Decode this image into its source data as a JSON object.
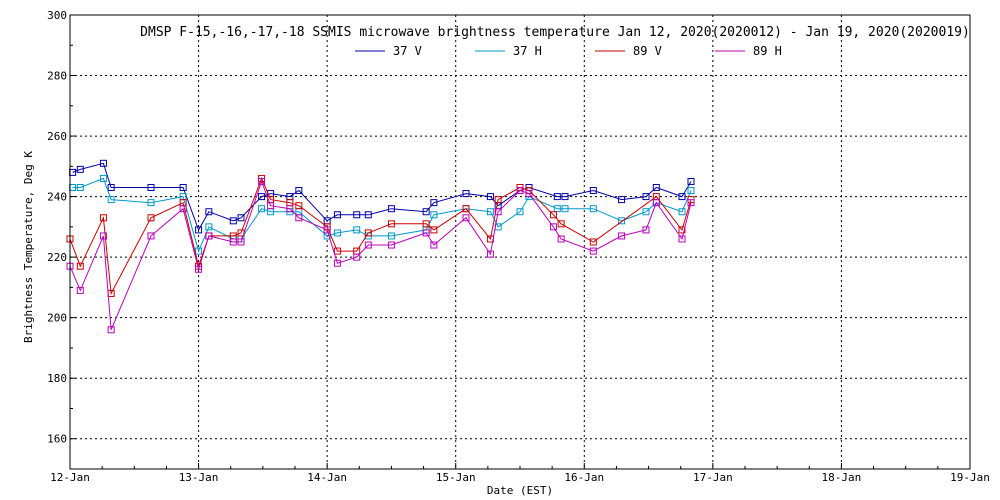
{
  "chart_data": {
    "type": "line",
    "title": "DMSP F-15,-16,-17,-18 SSMIS microwave brightness temperature Jan 12, 2020(2020012) - Jan 19, 2020(2020019)",
    "xlabel": "Date (EST)",
    "ylabel": "Brightness Temperature, Deg K",
    "xlim": [
      0,
      7
    ],
    "ylim": [
      150,
      300
    ],
    "x_ticks": [
      {
        "value": 0,
        "label": "12-Jan"
      },
      {
        "value": 1,
        "label": "13-Jan"
      },
      {
        "value": 2,
        "label": "14-Jan"
      },
      {
        "value": 3,
        "label": "15-Jan"
      },
      {
        "value": 4,
        "label": "16-Jan"
      },
      {
        "value": 5,
        "label": "17-Jan"
      },
      {
        "value": 6,
        "label": "18-Jan"
      },
      {
        "value": 7,
        "label": "19-Jan"
      }
    ],
    "y_ticks": [
      160,
      180,
      200,
      220,
      240,
      260,
      280,
      300
    ],
    "grid": true,
    "legend_position": "top-center",
    "series": [
      {
        "name": "37 V",
        "color": "#0000aa",
        "points": [
          [
            0.02,
            248
          ],
          [
            0.08,
            249
          ],
          [
            0.26,
            251
          ],
          [
            0.32,
            243
          ],
          [
            0.63,
            243
          ],
          [
            0.88,
            243
          ],
          [
            1.0,
            229
          ],
          [
            1.08,
            235
          ],
          [
            1.27,
            232
          ],
          [
            1.33,
            233
          ],
          [
            1.49,
            240
          ],
          [
            1.56,
            241
          ],
          [
            1.71,
            240
          ],
          [
            1.78,
            242
          ],
          [
            2.0,
            232
          ],
          [
            2.08,
            234
          ],
          [
            2.23,
            234
          ],
          [
            2.32,
            234
          ],
          [
            2.5,
            236
          ],
          [
            2.77,
            235
          ],
          [
            2.83,
            238
          ],
          [
            3.08,
            241
          ],
          [
            3.27,
            240
          ],
          [
            3.33,
            237
          ],
          [
            3.5,
            242
          ],
          [
            3.57,
            243
          ],
          [
            3.79,
            240
          ],
          [
            3.85,
            240
          ],
          [
            4.07,
            242
          ],
          [
            4.29,
            239
          ],
          [
            4.48,
            240
          ],
          [
            4.56,
            243
          ],
          [
            4.76,
            240
          ],
          [
            4.83,
            245
          ]
        ]
      },
      {
        "name": "37 H",
        "color": "#0099cc",
        "points": [
          [
            0.02,
            243
          ],
          [
            0.08,
            243
          ],
          [
            0.26,
            246
          ],
          [
            0.32,
            239
          ],
          [
            0.63,
            238
          ],
          [
            0.88,
            240
          ],
          [
            1.0,
            222
          ],
          [
            1.08,
            230
          ],
          [
            1.27,
            226
          ],
          [
            1.33,
            226
          ],
          [
            1.49,
            236
          ],
          [
            1.56,
            235
          ],
          [
            1.71,
            235
          ],
          [
            1.78,
            235
          ],
          [
            2.0,
            227
          ],
          [
            2.08,
            228
          ],
          [
            2.23,
            229
          ],
          [
            2.32,
            227
          ],
          [
            2.5,
            227
          ],
          [
            2.77,
            229
          ],
          [
            2.83,
            234
          ],
          [
            3.08,
            236
          ],
          [
            3.27,
            235
          ],
          [
            3.33,
            230
          ],
          [
            3.5,
            235
          ],
          [
            3.57,
            240
          ],
          [
            3.79,
            236
          ],
          [
            3.85,
            236
          ],
          [
            4.07,
            236
          ],
          [
            4.29,
            232
          ],
          [
            4.48,
            235
          ],
          [
            4.56,
            238
          ],
          [
            4.76,
            235
          ],
          [
            4.83,
            242
          ]
        ]
      },
      {
        "name": "89 V",
        "color": "#cc0000",
        "points": [
          [
            0.0,
            226
          ],
          [
            0.08,
            217
          ],
          [
            0.26,
            233
          ],
          [
            0.32,
            208
          ],
          [
            0.63,
            233
          ],
          [
            0.88,
            238
          ],
          [
            1.0,
            217
          ],
          [
            1.08,
            227
          ],
          [
            1.27,
            227
          ],
          [
            1.33,
            228
          ],
          [
            1.49,
            246
          ],
          [
            1.56,
            239
          ],
          [
            1.71,
            238
          ],
          [
            1.78,
            237
          ],
          [
            2.0,
            230
          ],
          [
            2.08,
            222
          ],
          [
            2.23,
            222
          ],
          [
            2.32,
            228
          ],
          [
            2.5,
            231
          ],
          [
            2.77,
            231
          ],
          [
            2.83,
            229
          ],
          [
            3.08,
            236
          ],
          [
            3.27,
            226
          ],
          [
            3.33,
            239
          ],
          [
            3.5,
            243
          ],
          [
            3.57,
            242
          ],
          [
            3.76,
            234
          ],
          [
            3.82,
            231
          ],
          [
            4.07,
            225
          ],
          [
            4.56,
            240
          ],
          [
            4.76,
            229
          ],
          [
            4.83,
            239
          ]
        ]
      },
      {
        "name": "89 H",
        "color": "#bb00bb",
        "points": [
          [
            0.0,
            217
          ],
          [
            0.08,
            209
          ],
          [
            0.26,
            227
          ],
          [
            0.32,
            196
          ],
          [
            0.63,
            227
          ],
          [
            0.88,
            236
          ],
          [
            1.0,
            216
          ],
          [
            1.08,
            227
          ],
          [
            1.27,
            225
          ],
          [
            1.33,
            225
          ],
          [
            1.49,
            245
          ],
          [
            1.56,
            237
          ],
          [
            1.71,
            236
          ],
          [
            1.78,
            233
          ],
          [
            2.0,
            229
          ],
          [
            2.08,
            218
          ],
          [
            2.23,
            220
          ],
          [
            2.32,
            224
          ],
          [
            2.5,
            224
          ],
          [
            2.77,
            228
          ],
          [
            2.83,
            224
          ],
          [
            3.08,
            233
          ],
          [
            3.27,
            221
          ],
          [
            3.33,
            235
          ],
          [
            3.5,
            242
          ],
          [
            3.57,
            241
          ],
          [
            3.76,
            230
          ],
          [
            3.82,
            226
          ],
          [
            4.07,
            222
          ],
          [
            4.29,
            227
          ],
          [
            4.48,
            229
          ],
          [
            4.56,
            238
          ],
          [
            4.76,
            226
          ],
          [
            4.83,
            238
          ]
        ]
      }
    ]
  }
}
